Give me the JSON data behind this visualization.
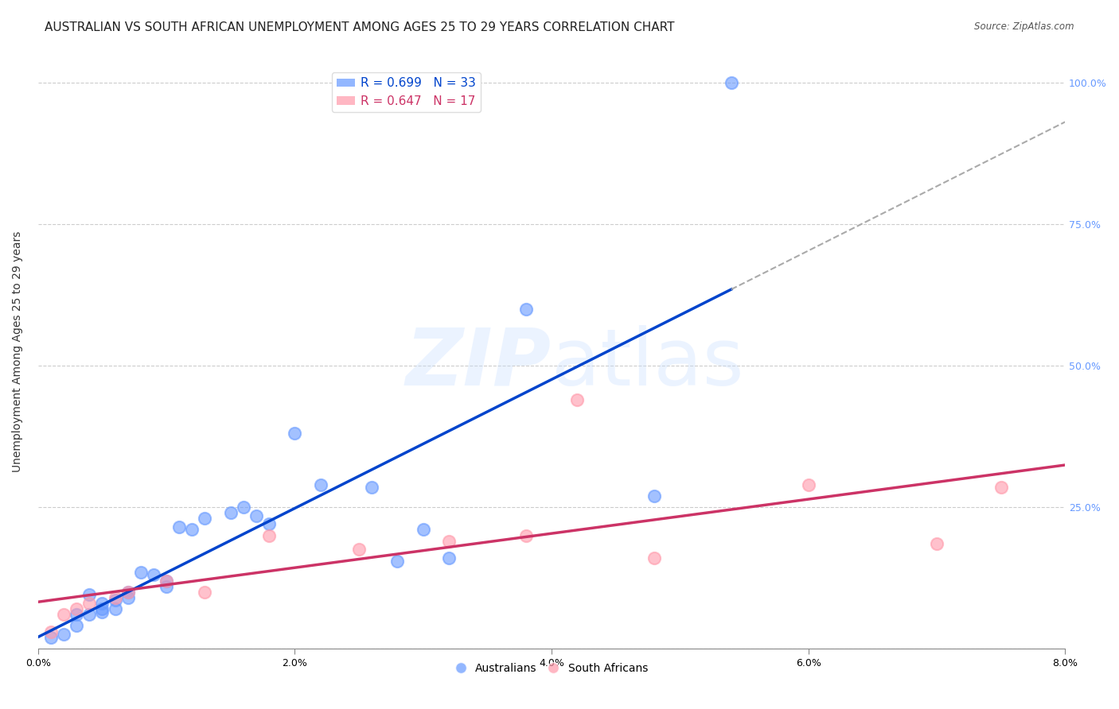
{
  "title": "AUSTRALIAN VS SOUTH AFRICAN UNEMPLOYMENT AMONG AGES 25 TO 29 YEARS CORRELATION CHART",
  "source": "Source: ZipAtlas.com",
  "ylabel": "Unemployment Among Ages 25 to 29 years",
  "xlabel": "",
  "xlim": [
    0.0,
    0.08
  ],
  "ylim": [
    0.0,
    1.05
  ],
  "xticks": [
    0.0,
    0.02,
    0.04,
    0.06,
    0.08
  ],
  "xticklabels": [
    "0.0%",
    "2.0%",
    "4.0%",
    "6.0%",
    "8.0%"
  ],
  "yticks": [
    0.0,
    0.25,
    0.5,
    0.75,
    1.0
  ],
  "yticklabels_right": [
    "",
    "25.0%",
    "50.0%",
    "75.0%",
    "100.0%"
  ],
  "grid_color": "#cccccc",
  "background_color": "#ffffff",
  "aus_color": "#6699ff",
  "aus_line_color": "#0044cc",
  "sa_color": "#ff99aa",
  "sa_line_color": "#cc3366",
  "aus_R": "0.699",
  "aus_N": "33",
  "sa_R": "0.647",
  "sa_N": "17",
  "watermark": "ZIPatlas",
  "watermark_color": "#aaccff",
  "aus_x": [
    0.001,
    0.002,
    0.003,
    0.003,
    0.004,
    0.004,
    0.005,
    0.005,
    0.005,
    0.006,
    0.006,
    0.007,
    0.007,
    0.008,
    0.009,
    0.01,
    0.01,
    0.011,
    0.012,
    0.013,
    0.015,
    0.016,
    0.017,
    0.018,
    0.02,
    0.022,
    0.026,
    0.028,
    0.03,
    0.032,
    0.038,
    0.048,
    0.054
  ],
  "aus_y": [
    0.02,
    0.025,
    0.04,
    0.06,
    0.06,
    0.095,
    0.065,
    0.07,
    0.08,
    0.07,
    0.085,
    0.09,
    0.1,
    0.135,
    0.13,
    0.11,
    0.12,
    0.215,
    0.21,
    0.23,
    0.24,
    0.25,
    0.235,
    0.22,
    0.38,
    0.29,
    0.285,
    0.155,
    0.21,
    0.16,
    0.6,
    0.27,
    1.0
  ],
  "sa_x": [
    0.001,
    0.002,
    0.003,
    0.004,
    0.006,
    0.007,
    0.01,
    0.013,
    0.018,
    0.025,
    0.032,
    0.038,
    0.042,
    0.048,
    0.06,
    0.07,
    0.075
  ],
  "sa_y": [
    0.03,
    0.06,
    0.07,
    0.08,
    0.09,
    0.1,
    0.12,
    0.1,
    0.2,
    0.175,
    0.19,
    0.2,
    0.44,
    0.16,
    0.29,
    0.185,
    0.285
  ],
  "legend_loc": "upper left",
  "marker_size": 120,
  "title_fontsize": 11,
  "axis_fontsize": 10,
  "tick_fontsize": 9
}
